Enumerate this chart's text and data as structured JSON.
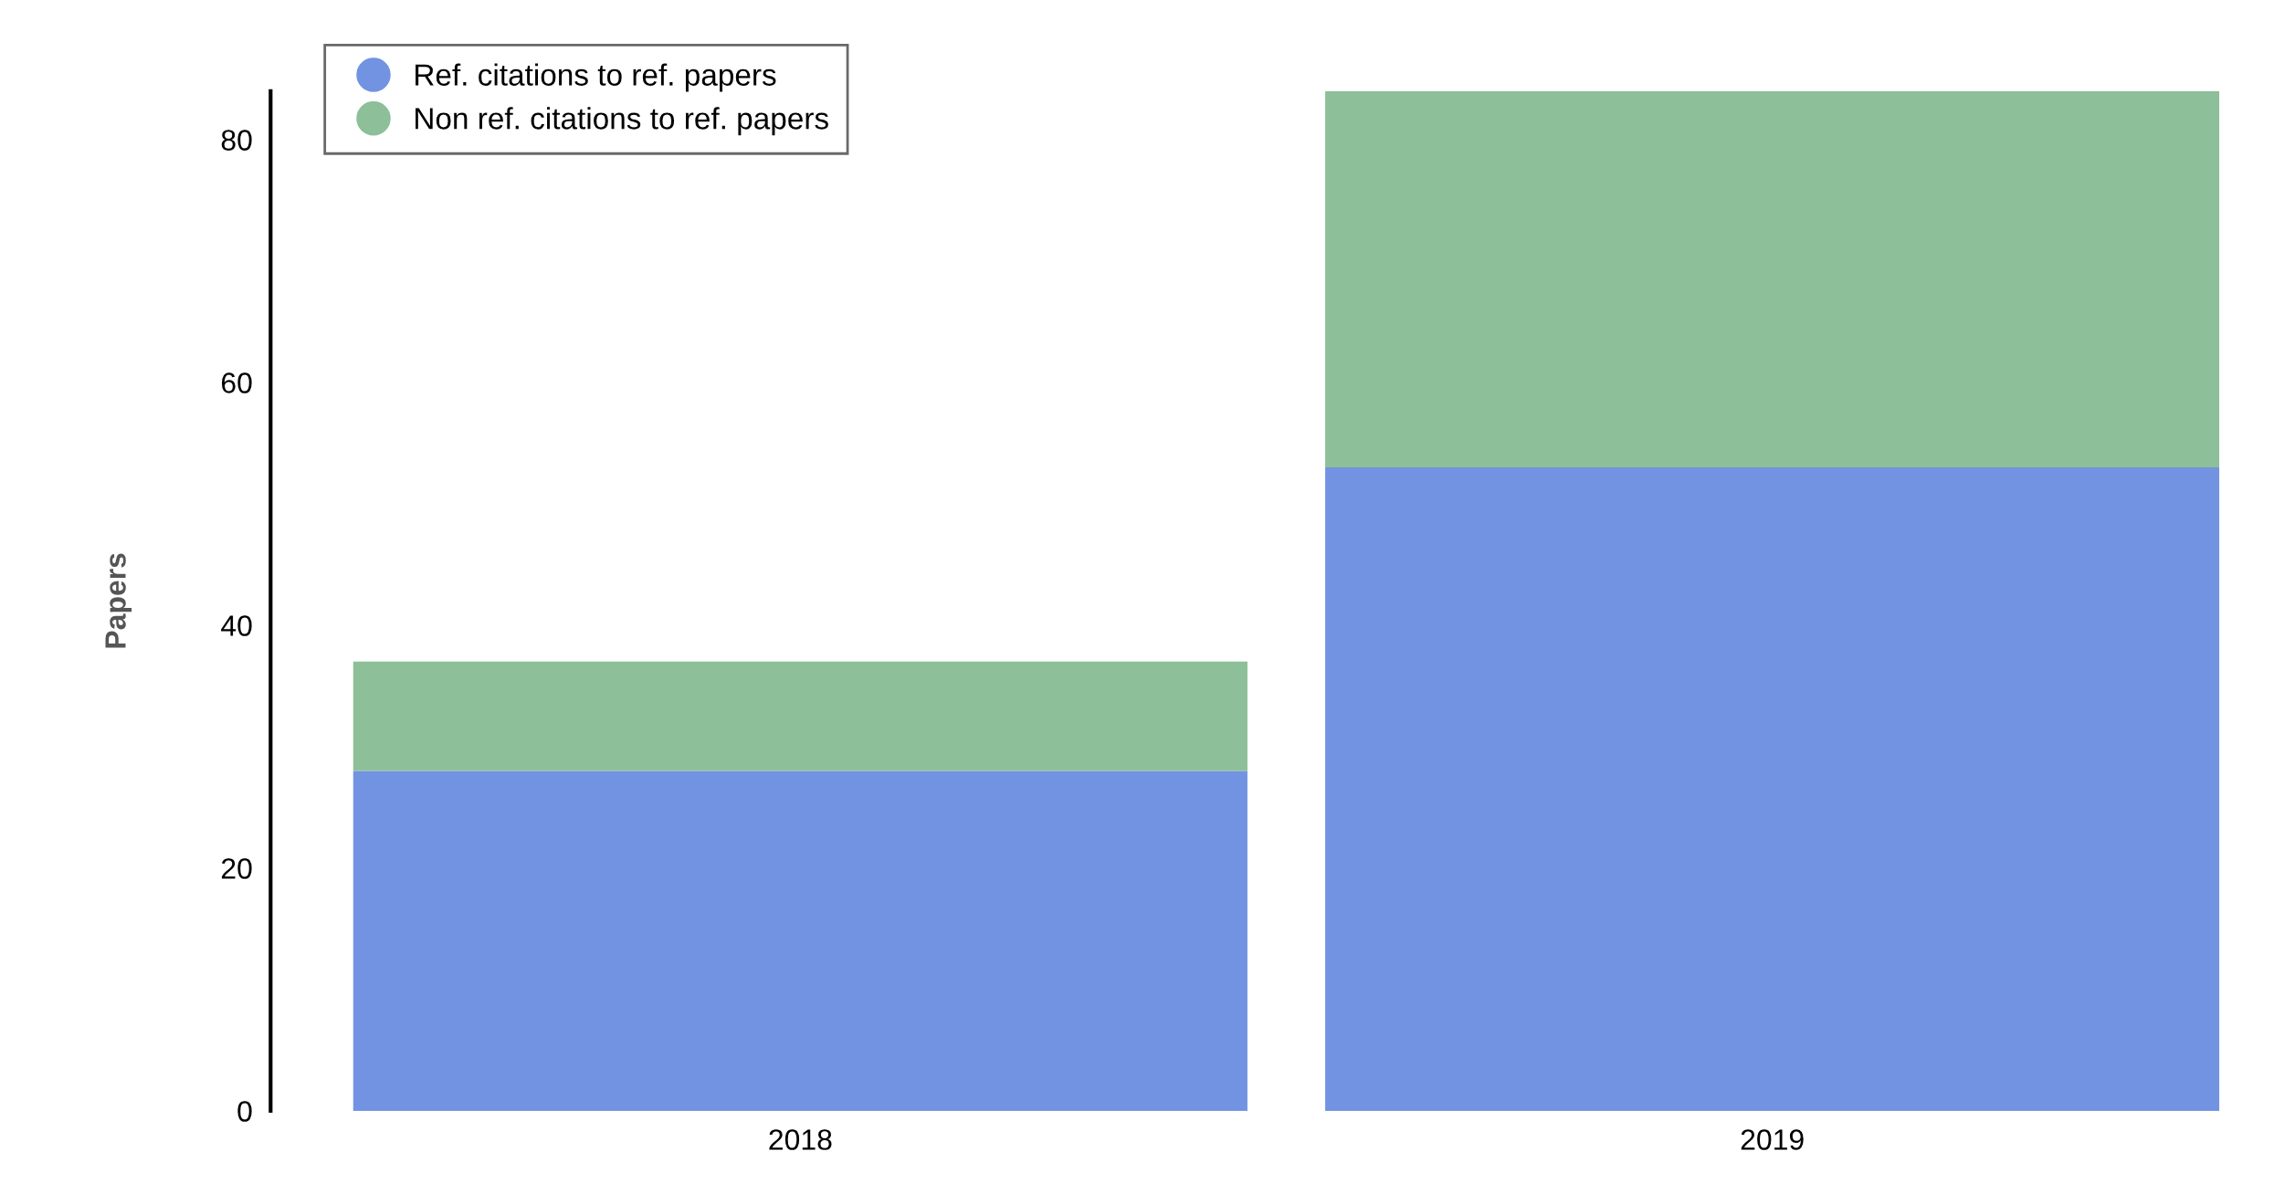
{
  "chart_data": {
    "type": "bar",
    "stacked": true,
    "ylabel": "Papers",
    "categories": [
      "2018",
      "2019"
    ],
    "series": [
      {
        "name": "Ref. citations to ref. papers",
        "color": "#7293e2",
        "values": [
          28,
          53
        ]
      },
      {
        "name": "Non ref. citations to ref. papers",
        "color": "#8dbf98",
        "values": [
          9,
          31
        ]
      }
    ],
    "ylim": [
      0,
      84
    ],
    "yticks": [
      0,
      20,
      40,
      60,
      80
    ],
    "grid": false,
    "legend": "top left"
  }
}
